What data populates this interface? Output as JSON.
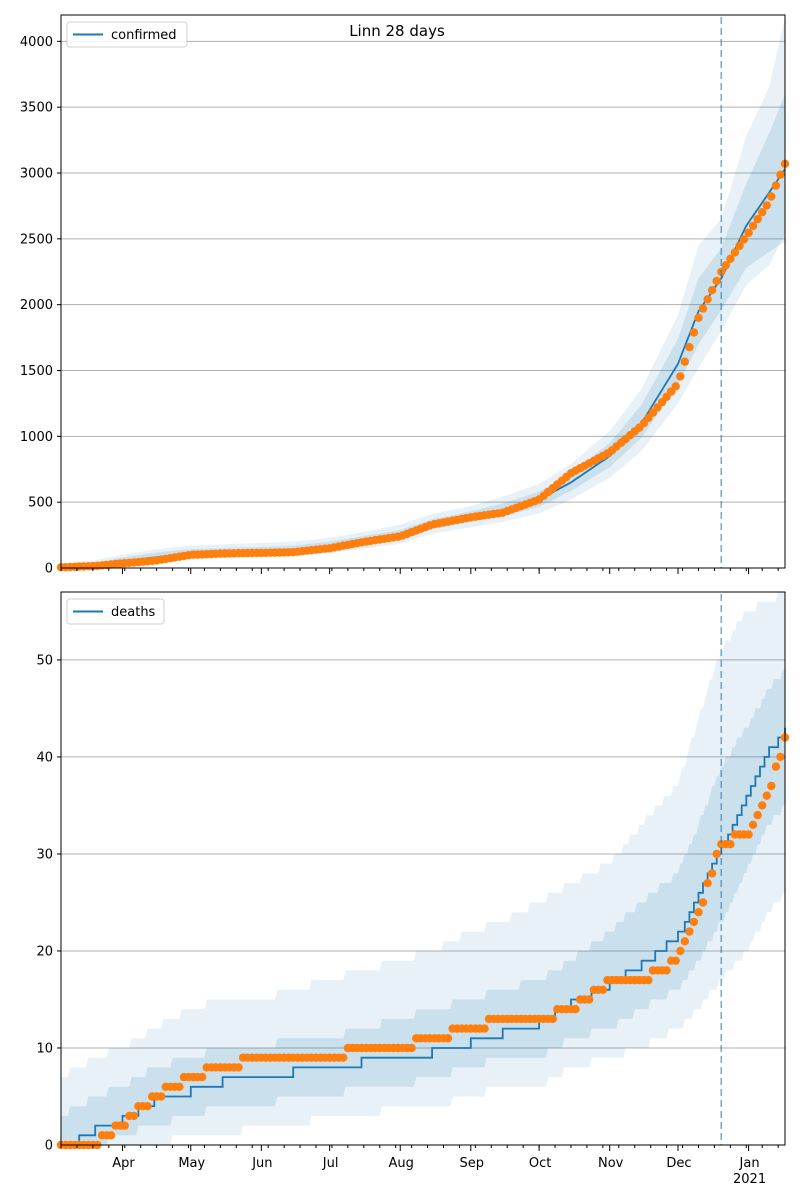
{
  "figure": {
    "title": "Linn 28 days"
  },
  "colors": {
    "model_line": "#1f77b4",
    "observed": "#ff7f0e",
    "band": "#1f77b4",
    "grid": "#b0b0b0"
  },
  "x_axis": {
    "month_labels": [
      {
        "date": "2020-04-01",
        "label": "Apr"
      },
      {
        "date": "2020-05-01",
        "label": "May"
      },
      {
        "date": "2020-06-01",
        "label": "Jun"
      },
      {
        "date": "2020-07-01",
        "label": "Jul"
      },
      {
        "date": "2020-08-01",
        "label": "Aug"
      },
      {
        "date": "2020-09-01",
        "label": "Sep"
      },
      {
        "date": "2020-10-01",
        "label": "Oct"
      },
      {
        "date": "2020-11-01",
        "label": "Nov"
      },
      {
        "date": "2020-12-01",
        "label": "Dec"
      },
      {
        "date": "2021-01-01",
        "label": "Jan"
      }
    ],
    "year_label": "2021",
    "range": [
      "2020-03-05",
      "2021-01-17"
    ],
    "forecast_start": "2020-12-20"
  },
  "chart_data": [
    {
      "type": "line",
      "legend": "confirmed",
      "legend_position": "upper-left",
      "grid": "horizontal",
      "ylim": [
        0,
        4200
      ],
      "yticks": [
        0,
        500,
        1000,
        1500,
        2000,
        2500,
        3000,
        3500,
        4000
      ],
      "model_line": {
        "x": [
          "2020-03-05",
          "2020-03-20",
          "2020-04-01",
          "2020-04-15",
          "2020-05-01",
          "2020-05-15",
          "2020-06-01",
          "2020-06-15",
          "2020-07-01",
          "2020-07-15",
          "2020-08-01",
          "2020-08-15",
          "2020-09-01",
          "2020-09-15",
          "2020-10-01",
          "2020-10-15",
          "2020-11-01",
          "2020-11-15",
          "2020-12-01",
          "2020-12-10",
          "2020-12-20",
          "2020-12-31",
          "2021-01-10",
          "2021-01-17"
        ],
        "y": [
          5,
          20,
          50,
          80,
          110,
          120,
          130,
          140,
          165,
          200,
          250,
          330,
          390,
          440,
          520,
          650,
          850,
          1100,
          1550,
          1950,
          2200,
          2600,
          2850,
          3030
        ]
      },
      "bands": [
        {
          "lower": [
            0,
            5,
            25,
            50,
            80,
            95,
            105,
            115,
            135,
            170,
            215,
            295,
            350,
            395,
            465,
            585,
            765,
            990,
            1390,
            1700,
            1960,
            2280,
            2400,
            2480
          ],
          "upper": [
            20,
            40,
            80,
            115,
            145,
            150,
            160,
            170,
            200,
            240,
            290,
            370,
            430,
            490,
            580,
            720,
            950,
            1240,
            1740,
            2200,
            2430,
            2920,
            3300,
            3600
          ]
        },
        {
          "lower": [
            0,
            0,
            10,
            35,
            60,
            75,
            85,
            95,
            115,
            145,
            185,
            260,
            310,
            350,
            415,
            520,
            685,
            890,
            1250,
            1520,
            1800,
            2150,
            2300,
            2540
          ],
          "upper": [
            30,
            60,
            100,
            140,
            170,
            180,
            190,
            200,
            230,
            270,
            330,
            410,
            470,
            540,
            640,
            790,
            1040,
            1360,
            1920,
            2450,
            2650,
            3280,
            3650,
            4180
          ]
        }
      ],
      "observed": {
        "x": [
          "2020-03-05",
          "2020-03-20",
          "2020-04-01",
          "2020-04-15",
          "2020-05-01",
          "2020-05-15",
          "2020-06-01",
          "2020-06-15",
          "2020-07-01",
          "2020-07-15",
          "2020-08-01",
          "2020-08-15",
          "2020-09-01",
          "2020-09-15",
          "2020-10-01",
          "2020-10-15",
          "2020-11-01",
          "2020-11-15",
          "2020-12-01",
          "2020-12-10",
          "2020-12-20",
          "2020-12-31",
          "2021-01-10",
          "2021-01-17"
        ],
        "y": [
          5,
          15,
          35,
          55,
          100,
          110,
          115,
          120,
          150,
          195,
          240,
          330,
          385,
          420,
          520,
          720,
          880,
          1080,
          1400,
          1900,
          2250,
          2520,
          2780,
          3070
        ]
      }
    },
    {
      "type": "line",
      "legend": "deaths",
      "legend_position": "upper-left",
      "grid": "horizontal",
      "ylim": [
        0,
        57
      ],
      "yticks": [
        0,
        10,
        20,
        30,
        40,
        50
      ],
      "model_line": {
        "x": [
          "2020-03-05",
          "2020-03-20",
          "2020-04-01",
          "2020-04-15",
          "2020-05-01",
          "2020-05-15",
          "2020-06-01",
          "2020-06-15",
          "2020-07-01",
          "2020-07-15",
          "2020-08-01",
          "2020-08-15",
          "2020-09-01",
          "2020-09-15",
          "2020-10-01",
          "2020-10-15",
          "2020-11-01",
          "2020-11-15",
          "2020-12-01",
          "2020-12-10",
          "2020-12-20",
          "2020-12-31",
          "2021-01-10",
          "2021-01-17"
        ],
        "y": [
          0,
          2,
          3,
          5,
          6,
          7,
          7,
          8,
          8,
          9,
          9,
          10,
          11,
          12,
          13,
          15,
          17,
          19,
          22,
          26,
          31,
          36,
          41,
          43
        ]
      },
      "bands": [
        {
          "lower": [
            0,
            0,
            1,
            2,
            3,
            4,
            4,
            5,
            5,
            6,
            6,
            7,
            8,
            9,
            9,
            11,
            12,
            14,
            16,
            19,
            23,
            28,
            33,
            35
          ],
          "upper": [
            3,
            5,
            6,
            8,
            9,
            10,
            10,
            11,
            11,
            12,
            13,
            14,
            15,
            16,
            17,
            19,
            22,
            25,
            28,
            33,
            39,
            43,
            47,
            49
          ]
        },
        {
          "lower": [
            0,
            0,
            0,
            0,
            1,
            1,
            2,
            2,
            3,
            3,
            4,
            4,
            5,
            6,
            6,
            8,
            9,
            10,
            12,
            14,
            17,
            20,
            24,
            26
          ],
          "upper": [
            7,
            9,
            10,
            12,
            14,
            15,
            15,
            16,
            17,
            18,
            19,
            20,
            22,
            23,
            25,
            27,
            29,
            33,
            37,
            44,
            51,
            55,
            56,
            57
          ]
        }
      ],
      "observed": {
        "x": [
          "2020-03-05",
          "2020-03-20",
          "2020-04-01",
          "2020-04-15",
          "2020-05-01",
          "2020-05-15",
          "2020-06-01",
          "2020-06-15",
          "2020-07-01",
          "2020-07-15",
          "2020-08-01",
          "2020-08-15",
          "2020-09-01",
          "2020-09-15",
          "2020-10-01",
          "2020-10-15",
          "2020-11-01",
          "2020-11-15",
          "2020-12-01",
          "2020-12-10",
          "2020-12-20",
          "2020-12-31",
          "2021-01-10",
          "2021-01-17"
        ],
        "y": [
          0,
          0,
          2,
          5,
          7,
          8,
          9,
          9,
          9,
          10,
          10,
          11,
          12,
          13,
          13,
          14,
          17,
          17,
          19,
          24,
          31,
          32,
          36,
          42
        ]
      }
    }
  ]
}
